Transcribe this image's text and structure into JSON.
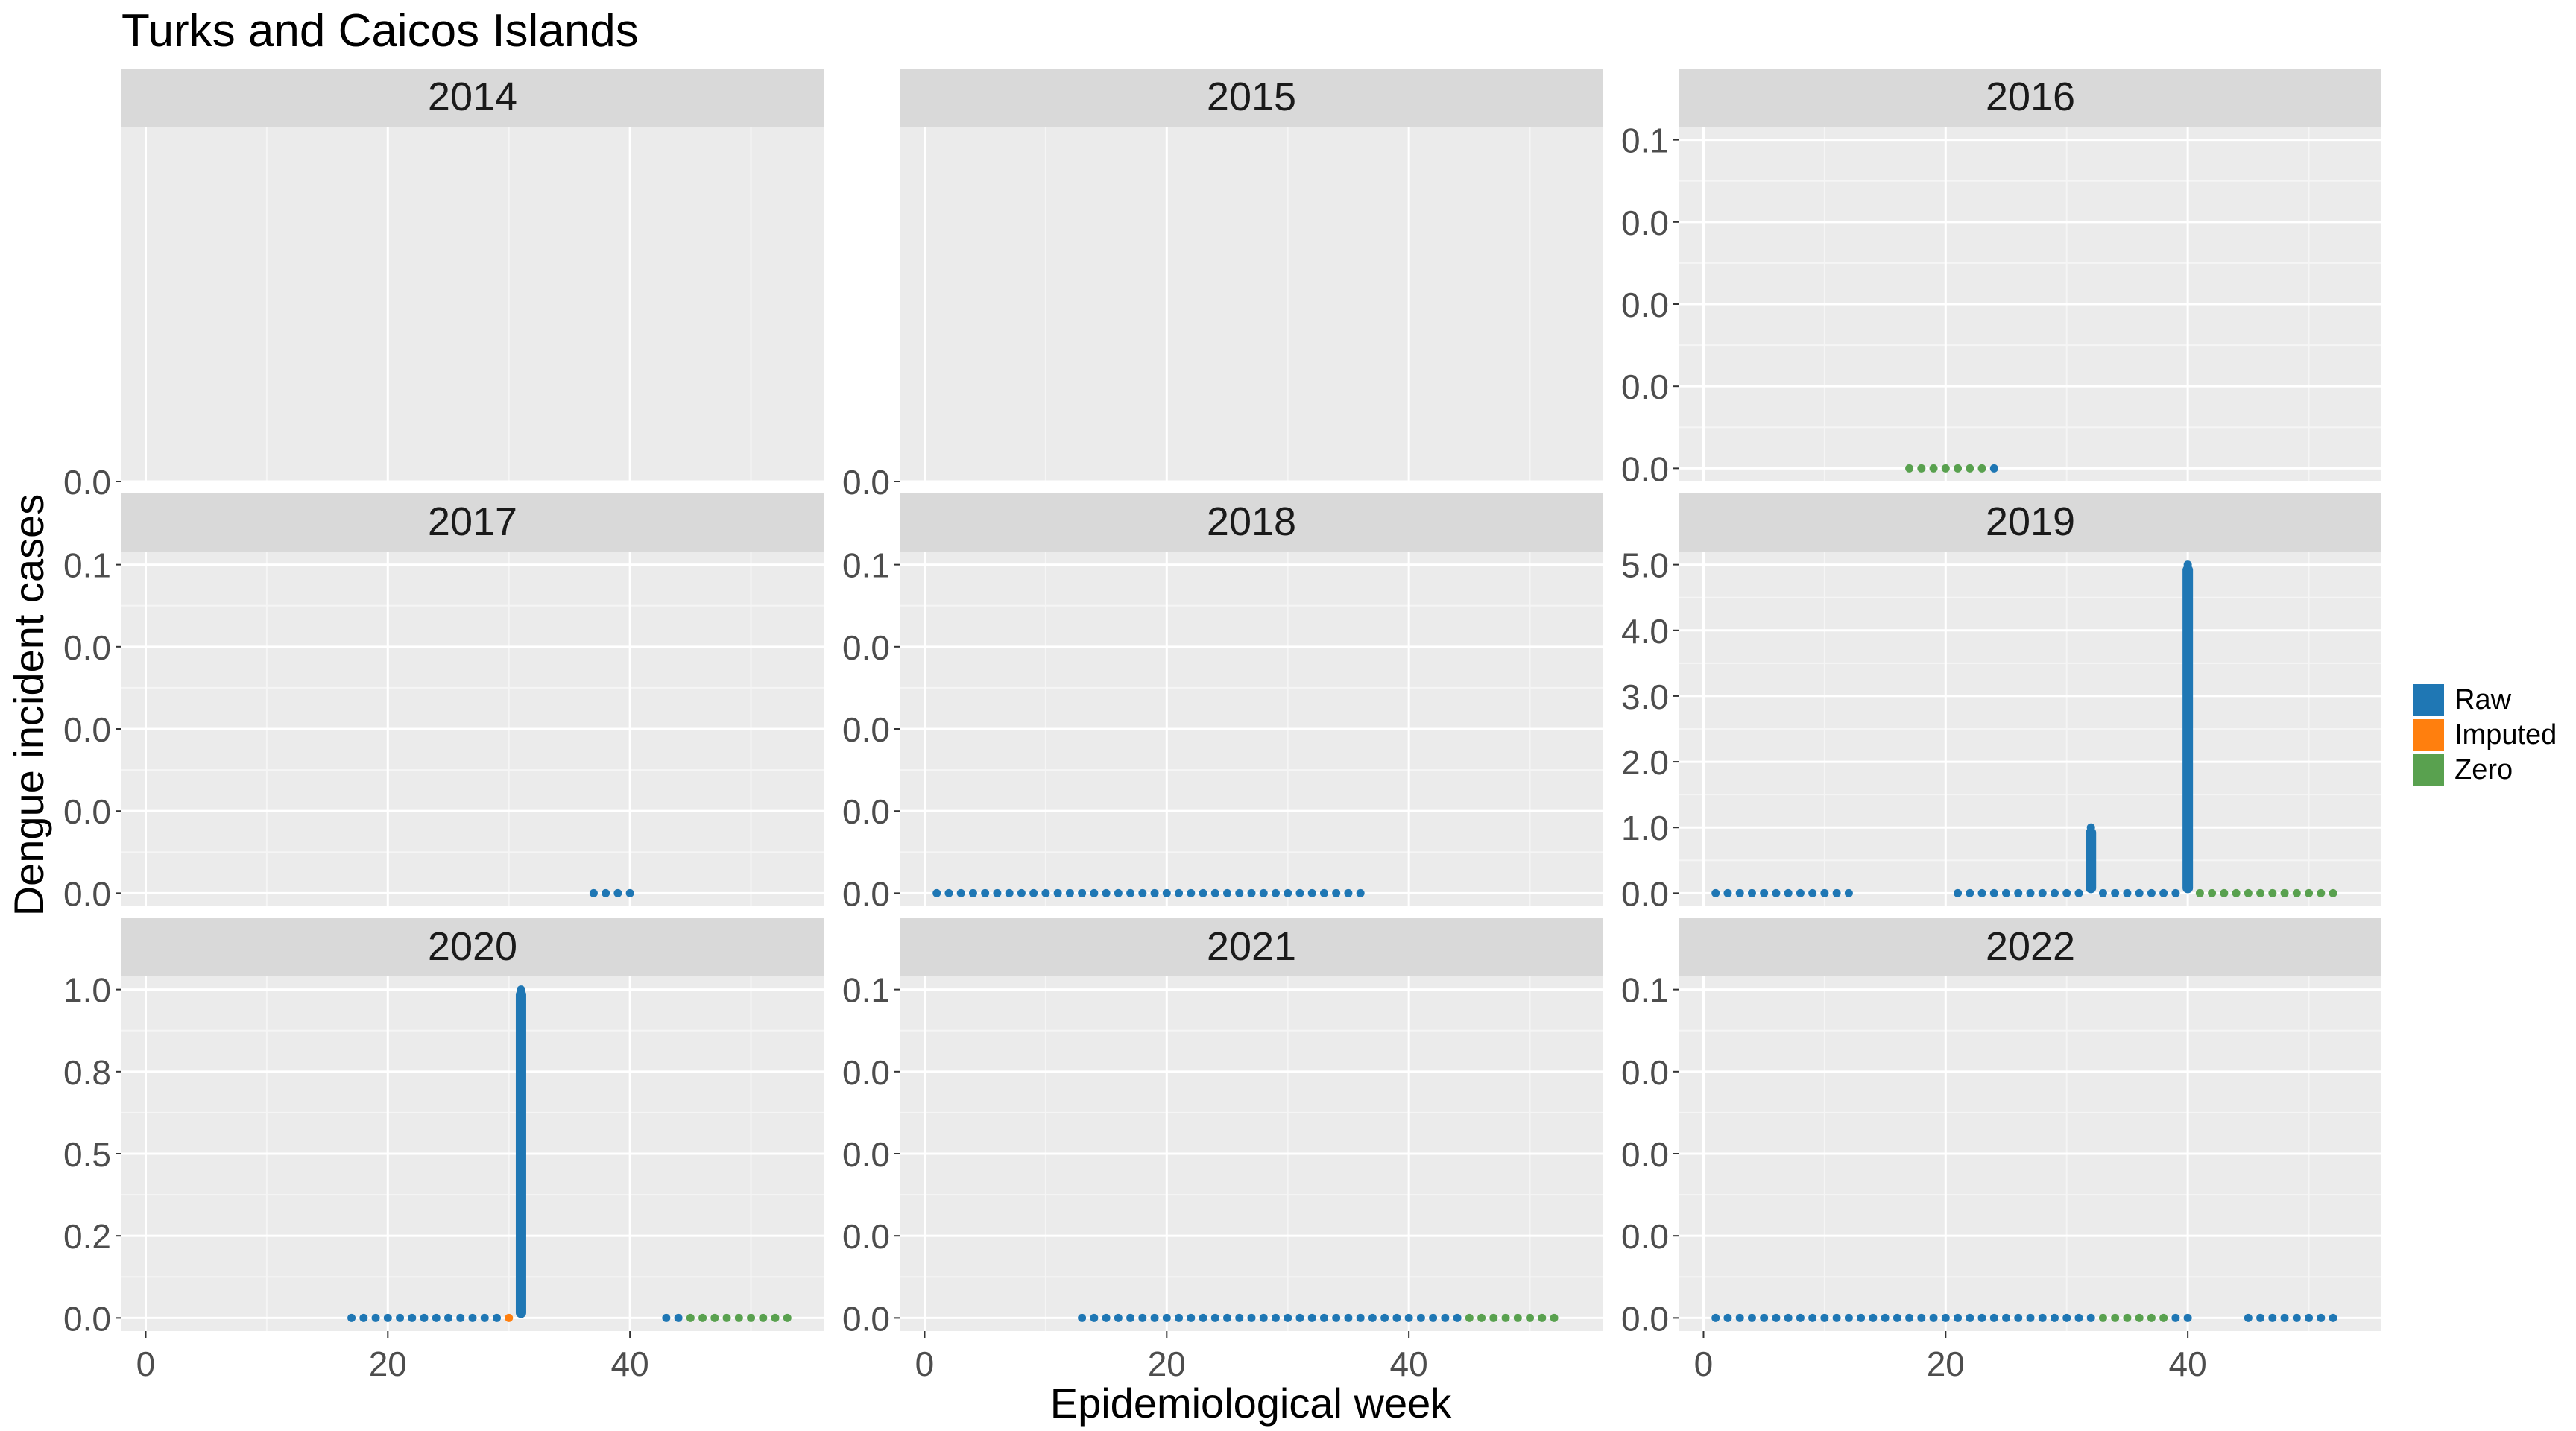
{
  "title": "Turks and Caicos Islands",
  "xlabel": "Epidemiological week",
  "ylabel": "Dengue incident cases",
  "legend": {
    "position": "right",
    "items": [
      {
        "label": "Raw",
        "color": "#1f77b4"
      },
      {
        "label": "Imputed",
        "color": "#ff7f0e"
      },
      {
        "label": "Zero",
        "color": "#59a14f"
      }
    ]
  },
  "chart_data": {
    "type": "line",
    "facet_by": "year",
    "layout": "3x3",
    "x_ticks": [
      "0",
      "20",
      "40"
    ],
    "xlim": [
      -2,
      56
    ],
    "grid": true,
    "panels": [
      {
        "year": "2014",
        "ylim": [
          0,
          0.1
        ],
        "y_ticks": [
          {
            "v": 0,
            "label": "0.0"
          }
        ],
        "raw": [],
        "imputed": [],
        "zero": []
      },
      {
        "year": "2015",
        "ylim": [
          0,
          0.1
        ],
        "y_ticks": [
          {
            "v": 0,
            "label": "0.0"
          }
        ],
        "raw": [],
        "imputed": [],
        "zero": []
      },
      {
        "year": "2016",
        "ylim": [
          -0.004,
          0.104
        ],
        "y_ticks": [
          {
            "v": 0,
            "label": "0.0"
          },
          {
            "v": 0.025,
            "label": "0.0"
          },
          {
            "v": 0.05,
            "label": "0.0"
          },
          {
            "v": 0.075,
            "label": "0.0"
          },
          {
            "v": 0.1,
            "label": "0.1"
          }
        ],
        "raw": [
          [
            24,
            0
          ]
        ],
        "imputed": [],
        "zero": [
          [
            17,
            0
          ],
          [
            18,
            0
          ],
          [
            19,
            0
          ],
          [
            20,
            0
          ],
          [
            21,
            0
          ],
          [
            22,
            0
          ],
          [
            23,
            0
          ]
        ]
      },
      {
        "year": "2017",
        "ylim": [
          -0.004,
          0.104
        ],
        "y_ticks": [
          {
            "v": 0,
            "label": "0.0"
          },
          {
            "v": 0.025,
            "label": "0.0"
          },
          {
            "v": 0.05,
            "label": "0.0"
          },
          {
            "v": 0.075,
            "label": "0.0"
          },
          {
            "v": 0.1,
            "label": "0.1"
          }
        ],
        "raw": [
          [
            37,
            0
          ],
          [
            38,
            0
          ],
          [
            39,
            0
          ],
          [
            40,
            0
          ]
        ],
        "imputed": [],
        "zero": []
      },
      {
        "year": "2018",
        "ylim": [
          -0.004,
          0.104
        ],
        "y_ticks": [
          {
            "v": 0,
            "label": "0.0"
          },
          {
            "v": 0.025,
            "label": "0.0"
          },
          {
            "v": 0.05,
            "label": "0.0"
          },
          {
            "v": 0.075,
            "label": "0.0"
          },
          {
            "v": 0.1,
            "label": "0.1"
          }
        ],
        "raw": [
          [
            1,
            0
          ],
          [
            2,
            0
          ],
          [
            3,
            0
          ],
          [
            4,
            0
          ],
          [
            5,
            0
          ],
          [
            6,
            0
          ],
          [
            7,
            0
          ],
          [
            8,
            0
          ],
          [
            9,
            0
          ],
          [
            10,
            0
          ],
          [
            11,
            0
          ],
          [
            12,
            0
          ],
          [
            13,
            0
          ],
          [
            14,
            0
          ],
          [
            15,
            0
          ],
          [
            16,
            0
          ],
          [
            17,
            0
          ],
          [
            18,
            0
          ],
          [
            19,
            0
          ],
          [
            20,
            0
          ],
          [
            21,
            0
          ],
          [
            22,
            0
          ],
          [
            23,
            0
          ],
          [
            24,
            0
          ],
          [
            25,
            0
          ],
          [
            26,
            0
          ],
          [
            27,
            0
          ],
          [
            28,
            0
          ],
          [
            29,
            0
          ],
          [
            30,
            0
          ],
          [
            31,
            0
          ],
          [
            32,
            0
          ],
          [
            33,
            0
          ],
          [
            34,
            0
          ],
          [
            35,
            0
          ],
          [
            36,
            0
          ]
        ],
        "imputed": [],
        "zero": []
      },
      {
        "year": "2019",
        "ylim": [
          -0.2,
          5.2
        ],
        "y_ticks": [
          {
            "v": 0,
            "label": "0.0"
          },
          {
            "v": 1,
            "label": "1.0"
          },
          {
            "v": 2,
            "label": "2.0"
          },
          {
            "v": 3,
            "label": "3.0"
          },
          {
            "v": 4,
            "label": "4.0"
          },
          {
            "v": 5,
            "label": "5.0"
          }
        ],
        "raw": [
          [
            1,
            0
          ],
          [
            2,
            0
          ],
          [
            3,
            0
          ],
          [
            4,
            0
          ],
          [
            5,
            0
          ],
          [
            6,
            0
          ],
          [
            7,
            0
          ],
          [
            8,
            0
          ],
          [
            9,
            0
          ],
          [
            10,
            0
          ],
          [
            11,
            0
          ],
          [
            12,
            0
          ],
          [
            21,
            0
          ],
          [
            22,
            0
          ],
          [
            23,
            0
          ],
          [
            24,
            0
          ],
          [
            25,
            0
          ],
          [
            26,
            0
          ],
          [
            27,
            0
          ],
          [
            28,
            0
          ],
          [
            29,
            0
          ],
          [
            30,
            0
          ],
          [
            31,
            0
          ],
          [
            32,
            1
          ],
          [
            33,
            0
          ],
          [
            34,
            0
          ],
          [
            35,
            0
          ],
          [
            36,
            0
          ],
          [
            37,
            0
          ],
          [
            38,
            0
          ],
          [
            39,
            0
          ],
          [
            40,
            5
          ]
        ],
        "imputed": [],
        "zero": [
          [
            41,
            0
          ],
          [
            42,
            0
          ],
          [
            43,
            0
          ],
          [
            44,
            0
          ],
          [
            45,
            0
          ],
          [
            46,
            0
          ],
          [
            47,
            0
          ],
          [
            48,
            0
          ],
          [
            49,
            0
          ],
          [
            50,
            0
          ],
          [
            51,
            0
          ],
          [
            52,
            0
          ]
        ]
      },
      {
        "year": "2020",
        "ylim": [
          -0.04,
          1.04
        ],
        "y_ticks": [
          {
            "v": 0,
            "label": "0.0"
          },
          {
            "v": 0.25,
            "label": "0.2"
          },
          {
            "v": 0.5,
            "label": "0.5"
          },
          {
            "v": 0.75,
            "label": "0.8"
          },
          {
            "v": 1,
            "label": "1.0"
          }
        ],
        "raw": [
          [
            17,
            0
          ],
          [
            18,
            0
          ],
          [
            19,
            0
          ],
          [
            20,
            0
          ],
          [
            21,
            0
          ],
          [
            22,
            0
          ],
          [
            23,
            0
          ],
          [
            24,
            0
          ],
          [
            25,
            0
          ],
          [
            26,
            0
          ],
          [
            27,
            0
          ],
          [
            28,
            0
          ],
          [
            29,
            0
          ],
          [
            31,
            1
          ],
          [
            43,
            0
          ],
          [
            44,
            0
          ]
        ],
        "imputed": [
          [
            30,
            0
          ]
        ],
        "zero": [
          [
            45,
            0
          ],
          [
            46,
            0
          ],
          [
            47,
            0
          ],
          [
            48,
            0
          ],
          [
            49,
            0
          ],
          [
            50,
            0
          ],
          [
            51,
            0
          ],
          [
            52,
            0
          ],
          [
            53,
            0
          ]
        ]
      },
      {
        "year": "2021",
        "ylim": [
          -0.004,
          0.104
        ],
        "y_ticks": [
          {
            "v": 0,
            "label": "0.0"
          },
          {
            "v": 0.025,
            "label": "0.0"
          },
          {
            "v": 0.05,
            "label": "0.0"
          },
          {
            "v": 0.075,
            "label": "0.0"
          },
          {
            "v": 0.1,
            "label": "0.1"
          }
        ],
        "raw": [
          [
            13,
            0
          ],
          [
            14,
            0
          ],
          [
            15,
            0
          ],
          [
            16,
            0
          ],
          [
            17,
            0
          ],
          [
            18,
            0
          ],
          [
            19,
            0
          ],
          [
            20,
            0
          ],
          [
            21,
            0
          ],
          [
            22,
            0
          ],
          [
            23,
            0
          ],
          [
            24,
            0
          ],
          [
            25,
            0
          ],
          [
            26,
            0
          ],
          [
            27,
            0
          ],
          [
            28,
            0
          ],
          [
            29,
            0
          ],
          [
            30,
            0
          ],
          [
            31,
            0
          ],
          [
            32,
            0
          ],
          [
            33,
            0
          ],
          [
            34,
            0
          ],
          [
            35,
            0
          ],
          [
            36,
            0
          ],
          [
            37,
            0
          ],
          [
            38,
            0
          ],
          [
            39,
            0
          ],
          [
            40,
            0
          ],
          [
            41,
            0
          ],
          [
            42,
            0
          ],
          [
            43,
            0
          ],
          [
            44,
            0
          ]
        ],
        "imputed": [],
        "zero": [
          [
            45,
            0
          ],
          [
            46,
            0
          ],
          [
            47,
            0
          ],
          [
            48,
            0
          ],
          [
            49,
            0
          ],
          [
            50,
            0
          ],
          [
            51,
            0
          ],
          [
            52,
            0
          ]
        ]
      },
      {
        "year": "2022",
        "ylim": [
          -0.004,
          0.104
        ],
        "y_ticks": [
          {
            "v": 0,
            "label": "0.0"
          },
          {
            "v": 0.025,
            "label": "0.0"
          },
          {
            "v": 0.05,
            "label": "0.0"
          },
          {
            "v": 0.075,
            "label": "0.0"
          },
          {
            "v": 0.1,
            "label": "0.1"
          }
        ],
        "raw": [
          [
            1,
            0
          ],
          [
            2,
            0
          ],
          [
            3,
            0
          ],
          [
            4,
            0
          ],
          [
            5,
            0
          ],
          [
            6,
            0
          ],
          [
            7,
            0
          ],
          [
            8,
            0
          ],
          [
            9,
            0
          ],
          [
            10,
            0
          ],
          [
            11,
            0
          ],
          [
            12,
            0
          ],
          [
            13,
            0
          ],
          [
            14,
            0
          ],
          [
            15,
            0
          ],
          [
            16,
            0
          ],
          [
            17,
            0
          ],
          [
            18,
            0
          ],
          [
            19,
            0
          ],
          [
            20,
            0
          ],
          [
            21,
            0
          ],
          [
            22,
            0
          ],
          [
            23,
            0
          ],
          [
            24,
            0
          ],
          [
            25,
            0
          ],
          [
            26,
            0
          ],
          [
            27,
            0
          ],
          [
            28,
            0
          ],
          [
            29,
            0
          ],
          [
            30,
            0
          ],
          [
            31,
            0
          ],
          [
            32,
            0
          ],
          [
            39,
            0
          ],
          [
            40,
            0
          ],
          [
            45,
            0
          ],
          [
            46,
            0
          ],
          [
            47,
            0
          ],
          [
            48,
            0
          ],
          [
            49,
            0
          ],
          [
            50,
            0
          ],
          [
            51,
            0
          ],
          [
            52,
            0
          ]
        ],
        "imputed": [],
        "zero": [
          [
            33,
            0
          ],
          [
            34,
            0
          ],
          [
            35,
            0
          ],
          [
            36,
            0
          ],
          [
            37,
            0
          ],
          [
            38,
            0
          ]
        ]
      }
    ]
  }
}
